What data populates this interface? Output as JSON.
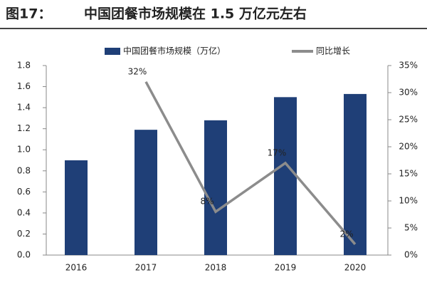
{
  "chart_data": {
    "type": "bar",
    "figure_label": "图17：",
    "title": "中国团餐市场规模在 1.5 万亿元左右",
    "categories": [
      "2016",
      "2017",
      "2018",
      "2019",
      "2020"
    ],
    "series": [
      {
        "name": "中国团餐市场规模（万亿）",
        "color": "#1f3f77",
        "type": "bar",
        "values": [
          0.9,
          1.19,
          1.28,
          1.5,
          1.53
        ]
      },
      {
        "name": "同比增长",
        "color": "#8c8c8c",
        "type": "line",
        "axis": "y2",
        "values": [
          null,
          32,
          8,
          17,
          2
        ],
        "value_labels": [
          null,
          "32%",
          "8%",
          "17%",
          "2%"
        ]
      }
    ],
    "ylim": [
      0,
      1.8
    ],
    "yticks": [
      {
        "value": 0,
        "label": "0.0"
      },
      {
        "value": 0.2,
        "label": "0.2"
      },
      {
        "value": 0.4,
        "label": "0.4"
      },
      {
        "value": 0.6,
        "label": "0.6"
      },
      {
        "value": 0.8,
        "label": "0.8"
      },
      {
        "value": 1.0,
        "label": "1.0"
      },
      {
        "value": 1.2,
        "label": "1.2"
      },
      {
        "value": 1.4,
        "label": "1.4"
      },
      {
        "value": 1.6,
        "label": "1.6"
      },
      {
        "value": 1.8,
        "label": "1.8"
      }
    ],
    "y2lim": [
      0,
      35
    ],
    "y2ticks": [
      {
        "value": 0,
        "label": "0%"
      },
      {
        "value": 5,
        "label": "5%"
      },
      {
        "value": 10,
        "label": "10%"
      },
      {
        "value": 15,
        "label": "15%"
      },
      {
        "value": 20,
        "label": "20%"
      },
      {
        "value": 25,
        "label": "25%"
      },
      {
        "value": 30,
        "label": "30%"
      },
      {
        "value": 35,
        "label": "35%"
      }
    ],
    "grid": false,
    "legend": "top"
  }
}
